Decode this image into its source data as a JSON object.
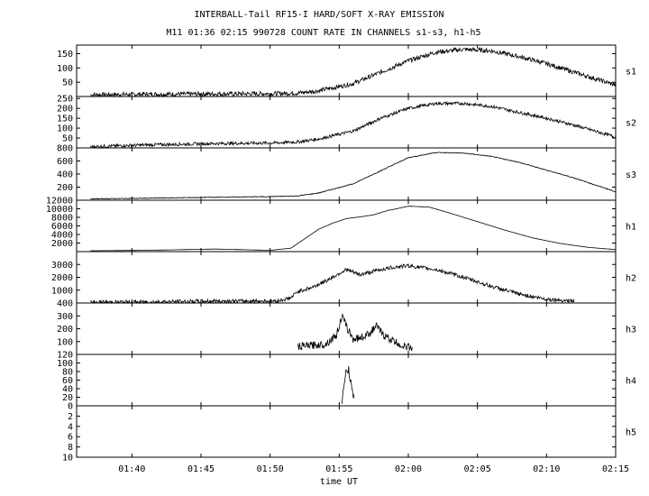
{
  "title": "INTERBALL-Tail RF15-I HARD/SOFT X-RAY EMISSION",
  "subtitle": "M11  01:36 02:15 990728  COUNT RATE IN CHANNELS s1-s3, h1-h5",
  "xlabel": "time UT",
  "x_ticks": [
    "01:40",
    "01:45",
    "01:50",
    "01:55",
    "02:00",
    "02:05",
    "02:10",
    "02:15"
  ],
  "chart_data": {
    "type": "line",
    "title": "INTERBALL-Tail RF15-I HARD/SOFT X-RAY EMISSION",
    "subtitle": "M11  01:36 02:15 990728  COUNT RATE IN CHANNELS s1-s3, h1-h5",
    "xlabel": "time UT",
    "xlim": [
      "01:36",
      "02:15"
    ],
    "x_minutes_from_start": [
      0,
      39
    ],
    "x_ticks": [
      "01:40",
      "01:45",
      "01:50",
      "01:55",
      "02:00",
      "02:05",
      "02:10",
      "02:15"
    ],
    "grid": false,
    "panels": [
      {
        "name": "s1",
        "ylim": [
          0,
          180
        ],
        "yticks": [
          "50",
          "100",
          "150"
        ],
        "series": {
          "x": [
            1,
            5,
            10,
            14,
            16,
            17.5,
            20,
            22,
            24,
            26,
            28,
            30,
            32,
            34,
            36,
            38,
            39
          ],
          "y": [
            6,
            8,
            9,
            10,
            12,
            20,
            45,
            85,
            125,
            155,
            165,
            160,
            140,
            115,
            85,
            55,
            40
          ]
        },
        "noise": 8
      },
      {
        "name": "s2",
        "ylim": [
          0,
          260
        ],
        "yticks": [
          "50",
          "100",
          "150",
          "200",
          "250"
        ],
        "series": {
          "x": [
            1,
            5,
            10,
            14,
            16,
            17.5,
            20,
            22,
            24,
            26,
            28,
            30,
            32,
            34,
            36,
            38,
            39
          ],
          "y": [
            6,
            15,
            22,
            25,
            30,
            45,
            85,
            150,
            200,
            225,
            225,
            210,
            180,
            150,
            115,
            75,
            55
          ]
        },
        "noise": 8
      },
      {
        "name": "s3",
        "ylim": [
          0,
          800
        ],
        "yticks": [
          "200",
          "400",
          "600",
          "800"
        ],
        "series": {
          "x": [
            1,
            5,
            10,
            14,
            16,
            17.5,
            20,
            22,
            24,
            26,
            28,
            30,
            32,
            34,
            36,
            38,
            39
          ],
          "y": [
            20,
            30,
            45,
            55,
            65,
            110,
            250,
            450,
            650,
            730,
            720,
            670,
            580,
            460,
            340,
            200,
            130
          ]
        },
        "noise": 6
      },
      {
        "name": "h1",
        "ylim": [
          0,
          12000
        ],
        "yticks": [
          "2000",
          "4000",
          "6000",
          "8000",
          "10000",
          "12000"
        ],
        "series": {
          "x": [
            1,
            5,
            10,
            14,
            15.5,
            16.5,
            17.5,
            18.5,
            19.5,
            20.5,
            21.5,
            22.5,
            23,
            24,
            25.5,
            27,
            29,
            31,
            33,
            35,
            37,
            38.5,
            39
          ],
          "y": [
            200,
            300,
            600,
            300,
            800,
            3000,
            5200,
            6600,
            7700,
            8100,
            8600,
            9600,
            9900,
            10600,
            10400,
            9000,
            7000,
            5000,
            3200,
            1900,
            1000,
            600,
            500
          ]
        },
        "noise": 0
      },
      {
        "name": "h2",
        "ylim": [
          0,
          4000
        ],
        "yticks": [
          "1000",
          "2000",
          "3000"
        ],
        "series": {
          "x": [
            1,
            5,
            10,
            14.5,
            15.5,
            16,
            17,
            18,
            19,
            19.5,
            20.5,
            22,
            23,
            24,
            26,
            28,
            30,
            32,
            34,
            36
          ],
          "y": [
            50,
            80,
            150,
            150,
            400,
            900,
            1200,
            1700,
            2300,
            2600,
            2200,
            2600,
            2800,
            2900,
            2600,
            2000,
            1300,
            700,
            300,
            150
          ]
        },
        "noise": 150
      },
      {
        "name": "h3",
        "ylim": [
          0,
          400
        ],
        "yticks": [
          "100",
          "200",
          "300",
          "400"
        ],
        "series": {
          "x": [
            16,
            17,
            18,
            18.8,
            19.2,
            19.5,
            20,
            20.5,
            21,
            21.7,
            22.2,
            23,
            23.5,
            24.3
          ],
          "y": [
            60,
            70,
            80,
            150,
            300,
            220,
            120,
            130,
            150,
            220,
            150,
            100,
            70,
            50
          ]
        },
        "noise": 30
      },
      {
        "name": "h4",
        "ylim": [
          0,
          120
        ],
        "yticks": [
          "20",
          "40",
          "60",
          "80",
          "100",
          "120"
        ],
        "series": {
          "x": [
            19.2,
            19.4,
            19.5,
            19.7,
            19.9,
            20.1
          ],
          "y": [
            15,
            50,
            90,
            80,
            40,
            15
          ]
        },
        "noise": 12
      },
      {
        "name": "h5",
        "ylim": [
          0,
          10
        ],
        "yticks": [
          "0",
          "2",
          "4",
          "6",
          "8",
          "10"
        ],
        "y_reversed": true,
        "series": {
          "x": [],
          "y": []
        },
        "noise": 0
      }
    ]
  }
}
